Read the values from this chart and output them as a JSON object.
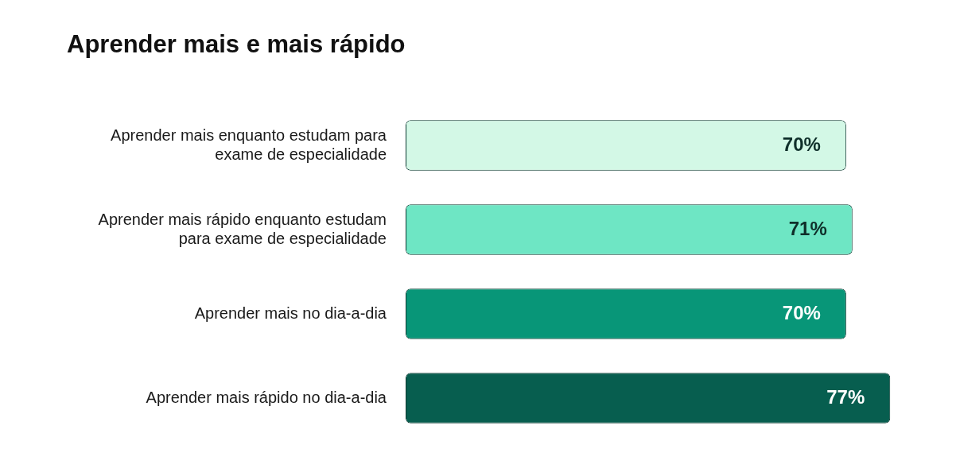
{
  "chart_data": {
    "type": "bar",
    "orientation": "horizontal",
    "title": "Aprender mais e mais rápido",
    "categories": [
      "Aprender mais enquanto estudam para exame de especialidade",
      "Aprender mais rápido enquanto estudam para exame de especialidade",
      "Aprender mais no dia-a-dia",
      "Aprender mais rápido no dia-a-dia"
    ],
    "values": [
      70,
      71,
      70,
      77
    ],
    "colors": [
      "#d3f8e6",
      "#6ee6c4",
      "#089678",
      "#075e4f"
    ],
    "value_labels": [
      "70%",
      "71%",
      "70%",
      "77%"
    ],
    "tick_labels": "y",
    "legend": false
  }
}
